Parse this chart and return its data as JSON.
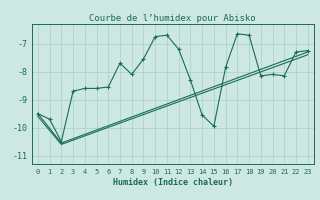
{
  "title": "Courbe de l’humidex pour Abisko",
  "xlabel": "Humidex (Indice chaleur)",
  "xlim": [
    -0.5,
    23.5
  ],
  "ylim": [
    -11.3,
    -6.3
  ],
  "yticks": [
    -11,
    -10,
    -9,
    -8,
    -7
  ],
  "xticks": [
    0,
    1,
    2,
    3,
    4,
    5,
    6,
    7,
    8,
    9,
    10,
    11,
    12,
    13,
    14,
    15,
    16,
    17,
    18,
    19,
    20,
    21,
    22,
    23
  ],
  "bg_color": "#cce8e0",
  "grid_color": "#aacfc7",
  "line_color": "#1a6b5a",
  "line1_x": [
    0,
    1,
    2,
    3,
    4,
    5,
    6,
    7,
    8,
    9,
    10,
    11,
    12,
    13,
    14,
    15,
    16,
    17,
    18,
    19,
    20,
    21,
    22,
    23
  ],
  "line1_y": [
    -9.5,
    -9.7,
    -10.5,
    -8.7,
    -8.6,
    -8.6,
    -8.55,
    -7.7,
    -8.1,
    -7.55,
    -6.75,
    -6.7,
    -7.2,
    -8.3,
    -9.55,
    -9.95,
    -7.85,
    -6.65,
    -6.7,
    -8.15,
    -8.1,
    -8.15,
    -7.3,
    -7.25
  ],
  "line2_x": [
    0,
    2,
    23
  ],
  "line2_y": [
    -9.5,
    -10.55,
    -7.3
  ],
  "line3_x": [
    0,
    2,
    23
  ],
  "line3_y": [
    -9.6,
    -10.6,
    -7.4
  ]
}
